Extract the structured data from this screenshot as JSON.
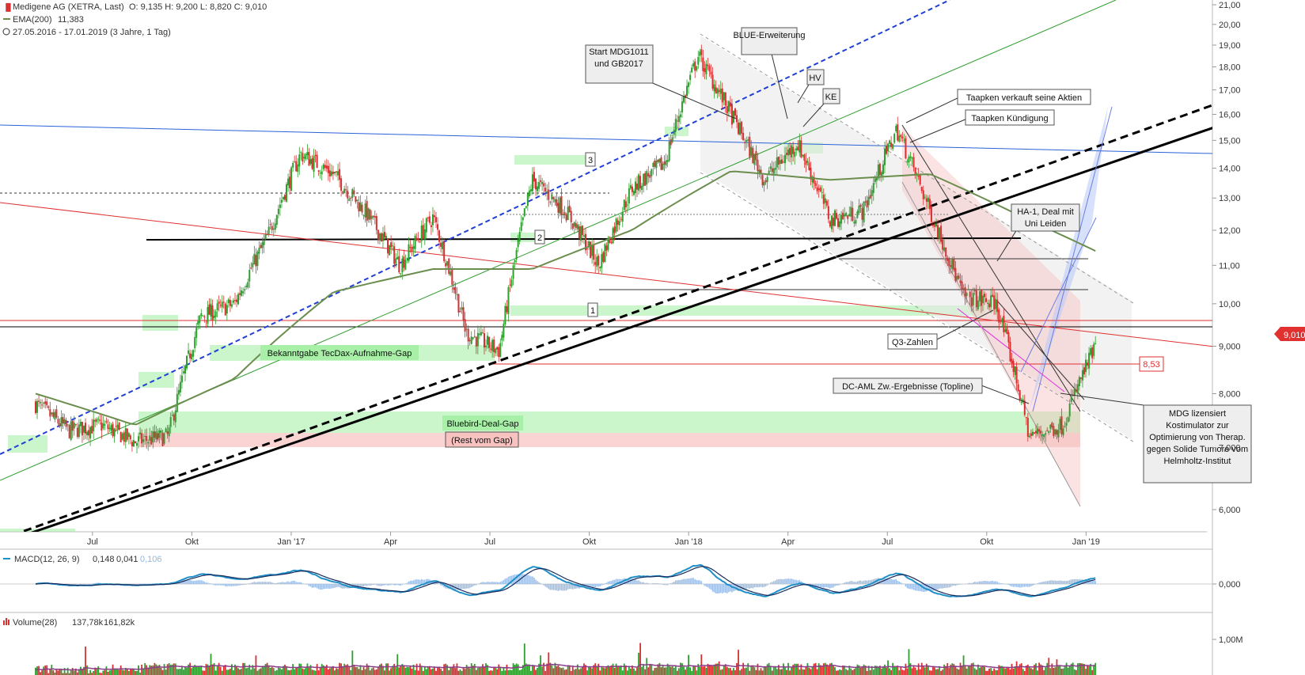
{
  "header": {
    "line1": "Medigene AG (XETRA, Last)",
    "ohlc": "O: 9,135  H: 9,200  L: 8,820  C: 9,010",
    "line2_name": "EMA(200)",
    "line2_value": "11,383",
    "line3": "27.05.2016 - 17.01.2019  (3 Jahre, 1 Tag)"
  },
  "colors": {
    "up": "#2e9e2e",
    "down": "#d63030",
    "ema": "#6b8e4e",
    "price_tag": "#e03030",
    "gap_green": "#a8f0a8",
    "gap_red": "#f7c2c0",
    "blue_dashed": "#1f3fd6",
    "macd_line": "#1f8fc8",
    "signal_line": "#1a2a5a"
  },
  "chart_data": [
    {
      "type": "candlestick",
      "title": "Medigene AG (XETRA, Last)",
      "x_tick_labels": [
        "Jul",
        "Okt",
        "Jan '17",
        "Apr",
        "Jul",
        "Okt",
        "Jan '18",
        "Apr",
        "Jul",
        "Okt",
        "Jan '19"
      ],
      "y_tick_labels": [
        "6,000",
        "7,000",
        "8,000",
        "9,000",
        "10,00",
        "11,00",
        "12,00",
        "13,00",
        "14,00",
        "15,00",
        "16,00",
        "17,00",
        "18,00",
        "19,00",
        "20,00",
        "21,00"
      ],
      "ylim": [
        5.5,
        21
      ],
      "y_scale": "log",
      "last_price": "9,010",
      "level_label": "8,53",
      "price_path_months": [
        0,
        1,
        2,
        3,
        4,
        5,
        6,
        7,
        8,
        9,
        10,
        11,
        12,
        13,
        14,
        15,
        16,
        17,
        18,
        19,
        20,
        21,
        22,
        23,
        24,
        25,
        26,
        27,
        28,
        29,
        30,
        31,
        32
      ],
      "price_path_values": [
        7.8,
        7.3,
        7.4,
        7.1,
        7.2,
        9.7,
        10.0,
        11.8,
        14.5,
        13.8,
        12.5,
        11.0,
        12.4,
        9.3,
        8.9,
        13.6,
        12.6,
        11.0,
        13.3,
        14.2,
        18.5,
        16.0,
        13.6,
        14.9,
        12.3,
        12.6,
        15.4,
        12.6,
        10.2,
        10.0,
        7.2,
        7.4,
        9.0
      ],
      "ema_label": "EMA(200)",
      "ema_value": "11,383",
      "ema_path_months": [
        0,
        3,
        6,
        9,
        12,
        15,
        18,
        21,
        24,
        27,
        30,
        32
      ],
      "ema_path_values": [
        8.0,
        7.4,
        8.3,
        10.3,
        10.9,
        10.9,
        12.0,
        13.9,
        13.6,
        13.8,
        12.3,
        11.4
      ],
      "legend": "top-left",
      "annotations": [
        "Start MDG1011 und GB2017",
        "BLUE-Erweiterung",
        "HV",
        "KE",
        "Taapken verkauft seine Aktien",
        "Taapken Kündigung",
        "HA-1, Deal mit Uni Leiden",
        "Q3-Zahlen",
        "DC-AML  Zw.-Ergebnisse (Topline)",
        "MDG lizensiert Kostimulator zur Optimierung von Therap. gegen Solide Tumore vom Helmholtz-Institut",
        "Bekanntgabe TecDax-Aufnahme-Gap",
        "Bluebird-Deal-Gap",
        "(Rest vom Gap)",
        "1",
        "2",
        "3"
      ]
    },
    {
      "type": "line",
      "title": "MACD(12, 26, 9)",
      "legend_values": [
        "0,148",
        "0,041",
        "0,106"
      ],
      "y_tick_labels": [
        "0,000"
      ]
    },
    {
      "type": "bar",
      "title": "Volume(28)",
      "legend_values": [
        "137,78k",
        "161,82k"
      ],
      "y_tick_labels": [
        "1,00M"
      ]
    }
  ]
}
